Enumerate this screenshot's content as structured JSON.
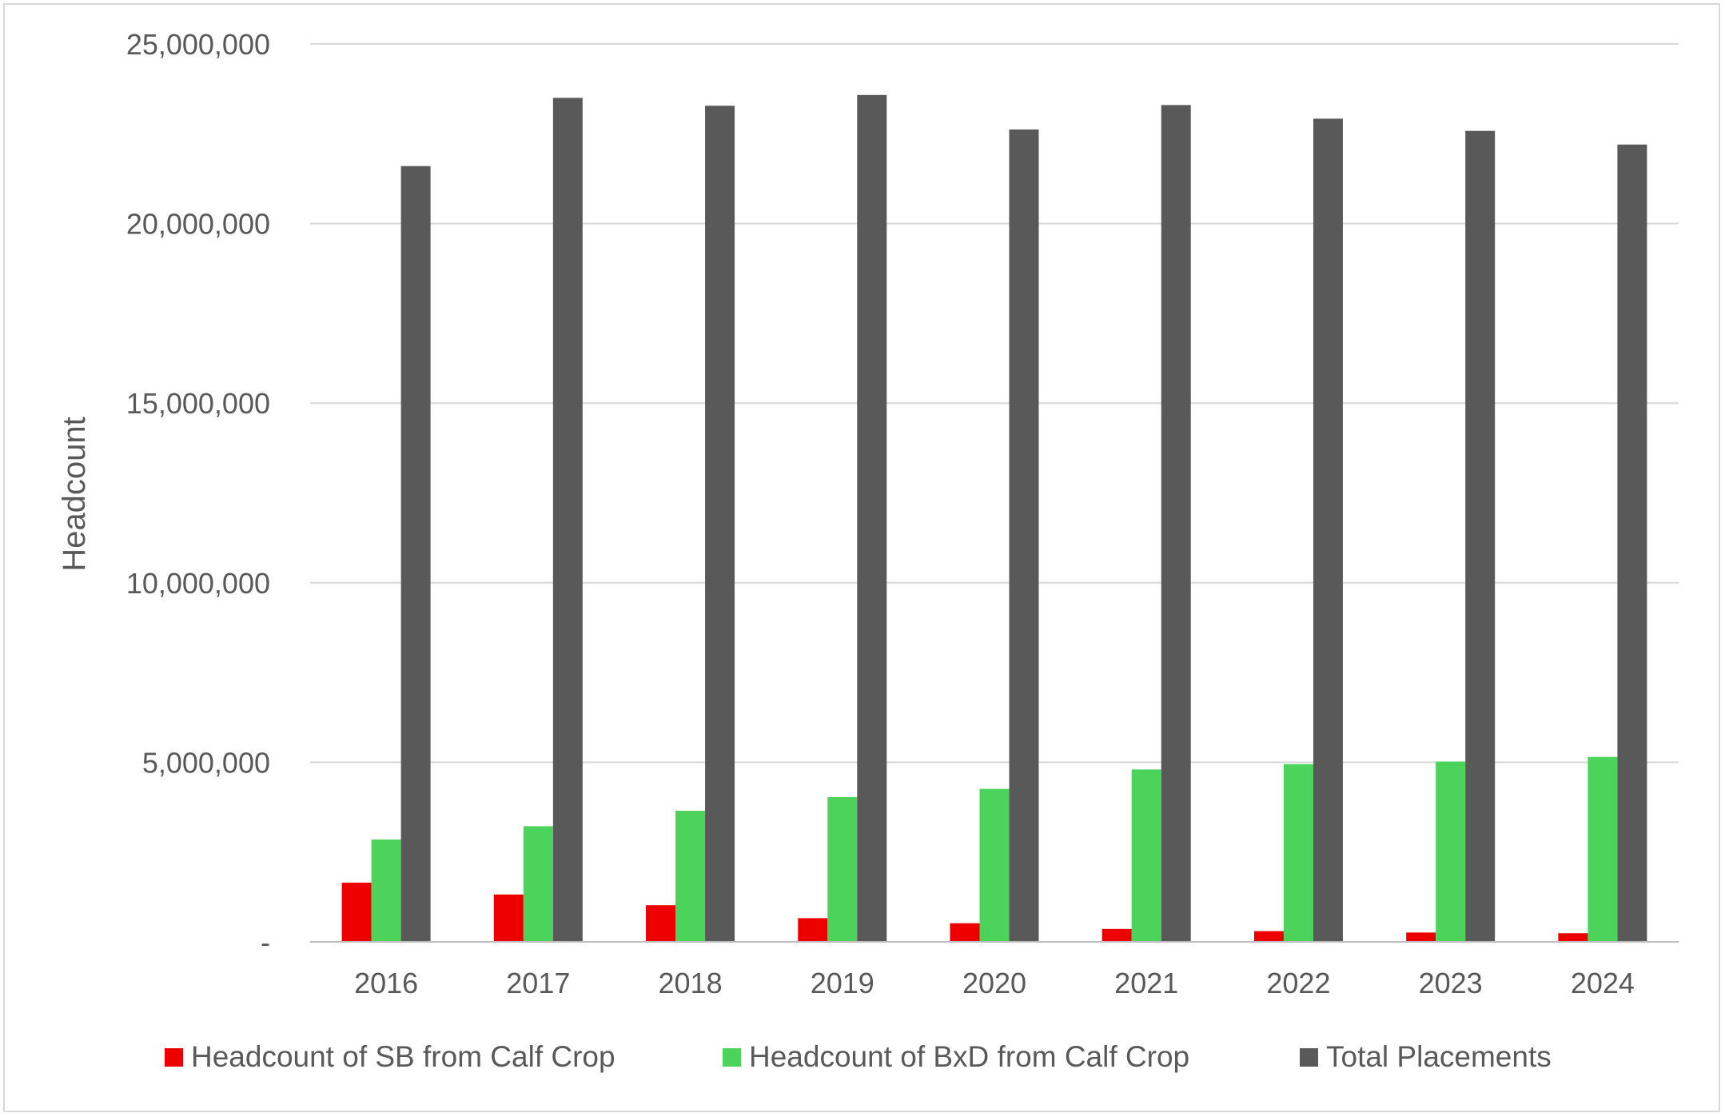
{
  "chart_data": {
    "type": "bar",
    "title": "",
    "xlabel": "",
    "ylabel": "Headcount",
    "ylim": [
      0,
      25000000
    ],
    "yticks": [
      0,
      5000000,
      10000000,
      15000000,
      20000000,
      25000000
    ],
    "ytick_labels": [
      "-",
      "5,000,000",
      "10,000,000",
      "15,000,000",
      "20,000,000",
      "25,000,000"
    ],
    "grid": true,
    "legend_position": "bottom",
    "categories": [
      "2016",
      "2017",
      "2018",
      "2019",
      "2020",
      "2021",
      "2022",
      "2023",
      "2024"
    ],
    "series": [
      {
        "name": "Headcount of SB from Calf Crop",
        "color": "#ee0000",
        "values": [
          1650000,
          1320000,
          1020000,
          660000,
          520000,
          360000,
          300000,
          260000,
          240000
        ]
      },
      {
        "name": "Headcount of BxD from Calf Crop",
        "color": "#4cd35c",
        "values": [
          2850000,
          3220000,
          3650000,
          4030000,
          4260000,
          4800000,
          4950000,
          5020000,
          5150000
        ]
      },
      {
        "name": "Total Placements",
        "color": "#595959",
        "values": [
          21600000,
          23500000,
          23280000,
          23580000,
          22620000,
          23300000,
          22920000,
          22580000,
          22200000
        ]
      }
    ]
  }
}
